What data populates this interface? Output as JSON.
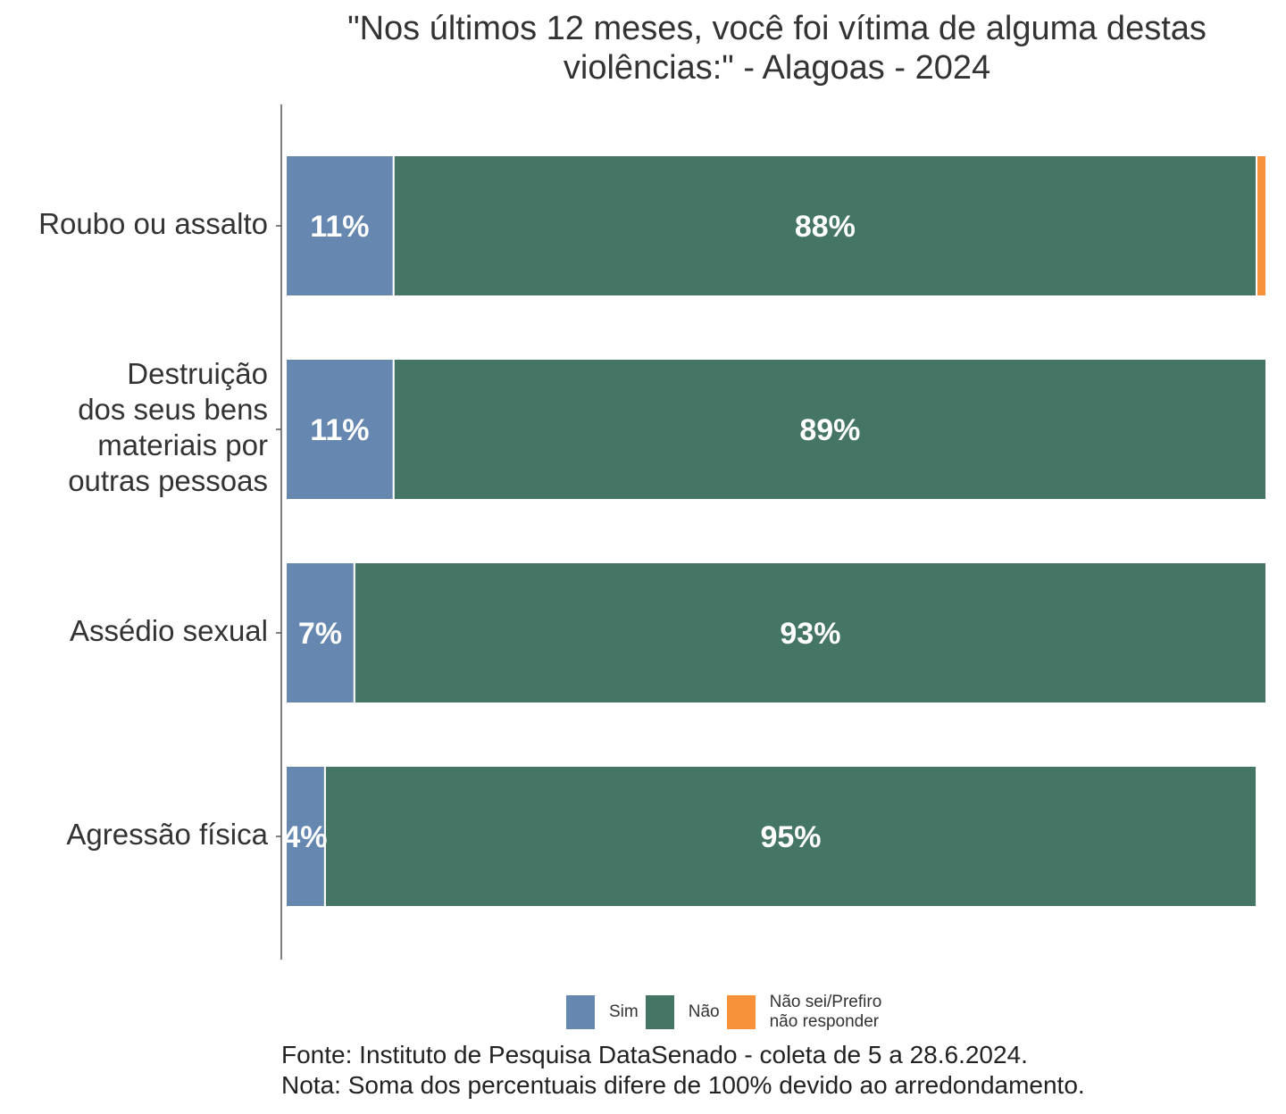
{
  "chart_data": {
    "type": "bar",
    "orientation": "horizontal",
    "stacked": true,
    "title": "\"Nos últimos 12 meses, você foi vítima de alguma destas violências:\" - Alagoas - 2024",
    "title_lines": [
      "\"Nos últimos 12 meses, você foi vítima de alguma destas",
      "violências:\" - Alagoas - 2024"
    ],
    "categories": [
      "Roubo ou assalto",
      "Destruição dos seus bens materiais por outras pessoas",
      "Assédio sexual",
      "Agressão física"
    ],
    "category_lines": [
      [
        "Roubo ou assalto"
      ],
      [
        "Destruição",
        "dos seus bens",
        "materiais por",
        "outras pessoas"
      ],
      [
        "Assédio sexual"
      ],
      [
        "Agressão física"
      ]
    ],
    "series": [
      {
        "name": "Sim",
        "color": "#6688b0",
        "values": [
          11,
          11,
          7,
          4
        ],
        "labels": [
          "11%",
          "11%",
          "7%",
          "4%"
        ]
      },
      {
        "name": "Não",
        "color": "#457564",
        "values": [
          88,
          89,
          93,
          95
        ],
        "labels": [
          "88%",
          "89%",
          "93%",
          "95%"
        ]
      },
      {
        "name": "Não sei/Prefiro não responder",
        "color": "#f7923a",
        "values": [
          1,
          0,
          0,
          0
        ],
        "labels": [
          "",
          "",
          "",
          ""
        ]
      }
    ],
    "xlim": [
      0,
      100
    ],
    "grid": false,
    "legend_position": "bottom"
  },
  "legend": [
    {
      "label": "Sim",
      "color": "#6688b0"
    },
    {
      "label": "Não",
      "color": "#457564"
    },
    {
      "label": "Não sei/Prefiro\nnão responder",
      "color": "#f7923a"
    }
  ],
  "footer": {
    "source": "Fonte: Instituto de Pesquisa DataSenado - coleta de 5 a 28.6.2024.",
    "note": "Nota: Soma dos percentuais difere de 100% devido ao arredondamento."
  }
}
